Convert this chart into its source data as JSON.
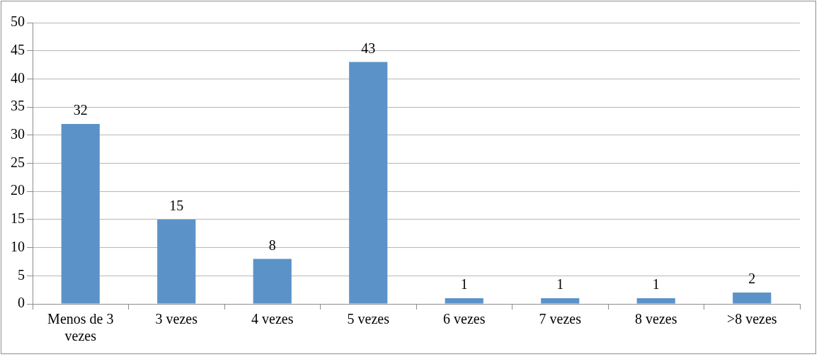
{
  "chart_data": {
    "type": "bar",
    "categories": [
      "Menos de 3 vezes",
      "3 vezes",
      "4 vezes",
      "5 vezes",
      "6 vezes",
      "7 vezes",
      "8 vezes",
      ">8 vezes"
    ],
    "values": [
      32,
      15,
      8,
      43,
      1,
      1,
      1,
      2
    ],
    "color": "#5b93c8",
    "ylim": [
      0,
      50
    ],
    "yticks": [
      0,
      5,
      10,
      15,
      20,
      25,
      30,
      35,
      40,
      45,
      50
    ],
    "grid": "y",
    "legend": false,
    "data_labels": true
  }
}
